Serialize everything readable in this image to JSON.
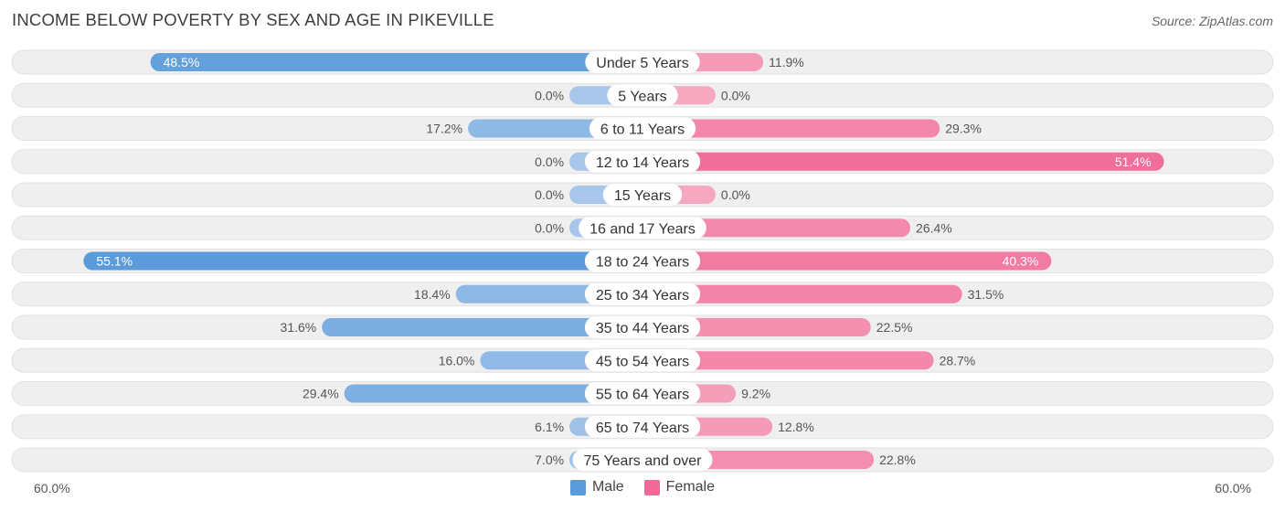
{
  "title": "INCOME BELOW POVERTY BY SEX AND AGE IN PIKEVILLE",
  "source": "Source: ZipAtlas.com",
  "colors": {
    "male_strong": "#5b9bd9",
    "male_light": "#a7c6ea",
    "female_strong": "#f06a97",
    "female_light": "#f6a8c1",
    "track": "#efefef"
  },
  "chart_data": {
    "type": "bar",
    "orientation": "horizontal-diverging",
    "title": "INCOME BELOW POVERTY BY SEX AND AGE IN PIKEVILLE",
    "categories": [
      "Under 5 Years",
      "5 Years",
      "6 to 11 Years",
      "12 to 14 Years",
      "15 Years",
      "16 and 17 Years",
      "18 to 24 Years",
      "25 to 34 Years",
      "35 to 44 Years",
      "45 to 54 Years",
      "55 to 64 Years",
      "65 to 74 Years",
      "75 Years and over"
    ],
    "series": [
      {
        "name": "Male",
        "values": [
          48.5,
          0.0,
          17.2,
          0.0,
          0.0,
          0.0,
          55.1,
          18.4,
          31.6,
          16.0,
          29.4,
          6.1,
          7.0
        ]
      },
      {
        "name": "Female",
        "values": [
          11.9,
          0.0,
          29.3,
          51.4,
          0.0,
          26.4,
          40.3,
          31.5,
          22.5,
          28.7,
          9.2,
          12.8,
          22.8
        ]
      }
    ],
    "value_labels": {
      "male": [
        "48.5%",
        "0.0%",
        "17.2%",
        "0.0%",
        "0.0%",
        "0.0%",
        "55.1%",
        "18.4%",
        "31.6%",
        "16.0%",
        "29.4%",
        "6.1%",
        "7.0%"
      ],
      "female": [
        "11.9%",
        "0.0%",
        "29.3%",
        "51.4%",
        "0.0%",
        "26.4%",
        "40.3%",
        "31.5%",
        "22.5%",
        "28.7%",
        "9.2%",
        "12.8%",
        "22.8%"
      ]
    },
    "xlim": [
      -60,
      60
    ],
    "axis_labels": {
      "left": "60.0%",
      "right": "60.0%"
    },
    "legend_position": "bottom-center"
  },
  "legend": {
    "male": "Male",
    "female": "Female"
  }
}
